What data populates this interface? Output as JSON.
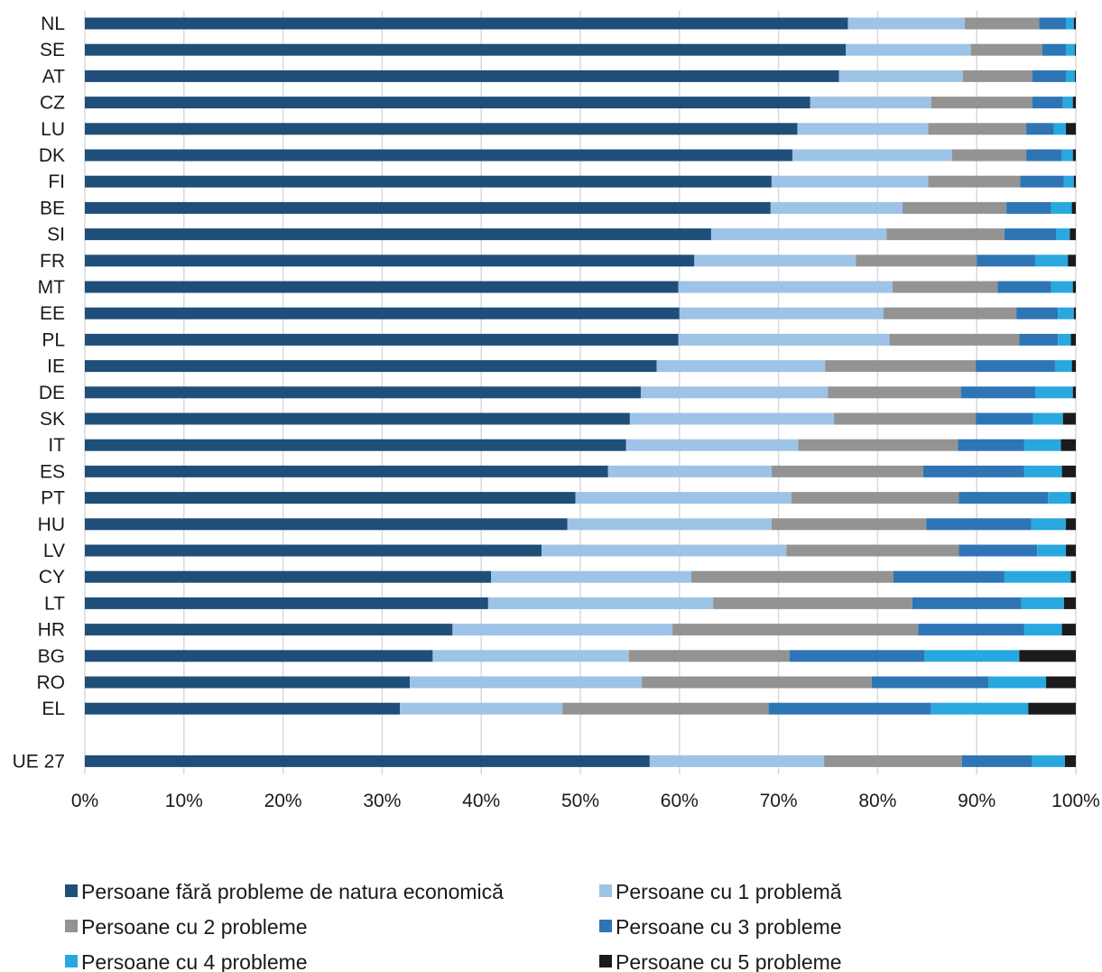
{
  "chart_data": {
    "type": "bar",
    "orientation": "horizontal",
    "stacked": true,
    "normalized_percent": true,
    "title": "",
    "xlabel": "",
    "ylabel": "",
    "xlim": [
      0,
      100
    ],
    "x_ticks": [
      "0%",
      "10%",
      "20%",
      "30%",
      "40%",
      "50%",
      "60%",
      "70%",
      "80%",
      "90%",
      "100%"
    ],
    "grid": "vertical",
    "legend_position": "bottom",
    "categories": [
      "NL",
      "SE",
      "AT",
      "CZ",
      "LU",
      "DK",
      "FI",
      "BE",
      "SI",
      "FR",
      "MT",
      "EE",
      "PL",
      "IE",
      "DE",
      "SK",
      "IT",
      "ES",
      "PT",
      "HU",
      "LV",
      "CY",
      "LT",
      "HR",
      "BG",
      "RO",
      "EL",
      "UE 27"
    ],
    "series": [
      {
        "name": "Persoane fără probleme de natura economică",
        "color": "#1f4e79",
        "values": [
          77,
          76.8,
          76.1,
          73.2,
          71.9,
          71.4,
          69.3,
          69.2,
          63.2,
          61.5,
          59.9,
          60.0,
          59.9,
          57.7,
          56.1,
          55.0,
          54.6,
          52.8,
          49.5,
          48.7,
          46.1,
          41.0,
          40.7,
          37.1,
          35.1,
          32.8,
          31.8,
          57.0
        ]
      },
      {
        "name": "Persoane cu 1 problemă",
        "color": "#9dc3e6",
        "values": [
          11.8,
          12.6,
          12.5,
          12.2,
          13.2,
          16.1,
          15.8,
          13.3,
          17.7,
          16.3,
          21.6,
          20.6,
          21.3,
          17.0,
          18.9,
          20.6,
          17.4,
          16.5,
          21.8,
          20.6,
          24.7,
          20.2,
          22.7,
          22.2,
          19.8,
          23.4,
          16.4,
          17.6
        ]
      },
      {
        "name": "Persoane cu 2 probleme",
        "color": "#939393",
        "values": [
          7.5,
          7.2,
          7.0,
          10.2,
          9.9,
          7.5,
          9.3,
          10.5,
          11.9,
          12.2,
          10.6,
          13.4,
          13.1,
          15.2,
          13.4,
          14.3,
          16.1,
          15.3,
          16.9,
          15.6,
          17.4,
          20.4,
          20.1,
          24.8,
          16.2,
          23.2,
          20.8,
          13.9
        ]
      },
      {
        "name": "Persoane cu 3 probleme",
        "color": "#2e75b6",
        "values": [
          2.7,
          2.4,
          3.4,
          3.1,
          2.8,
          3.6,
          4.4,
          4.5,
          5.2,
          5.9,
          5.4,
          4.2,
          3.9,
          8.0,
          7.5,
          5.8,
          6.7,
          10.2,
          9.0,
          10.6,
          7.9,
          11.2,
          11.0,
          10.7,
          13.6,
          11.8,
          16.4,
          7.1
        ]
      },
      {
        "name": "Persoane cu 4 probleme",
        "color": "#29a8e0",
        "values": [
          0.8,
          0.9,
          0.9,
          1.0,
          1.2,
          1.1,
          1.0,
          2.1,
          1.4,
          3.3,
          2.2,
          1.6,
          1.3,
          1.7,
          3.8,
          3.0,
          3.7,
          3.8,
          2.3,
          3.5,
          2.9,
          6.7,
          4.3,
          3.8,
          9.6,
          5.8,
          9.8,
          3.3
        ]
      },
      {
        "name": "Persoane cu 5 probleme",
        "color": "#1b1b1b",
        "values": [
          0.2,
          0.1,
          0.1,
          0.3,
          1.0,
          0.3,
          0.2,
          0.4,
          0.6,
          0.8,
          0.3,
          0.2,
          0.5,
          0.4,
          0.3,
          1.3,
          1.5,
          1.4,
          0.5,
          1.0,
          1.0,
          0.5,
          1.2,
          1.4,
          5.7,
          3.0,
          4.8,
          1.1
        ]
      }
    ]
  }
}
